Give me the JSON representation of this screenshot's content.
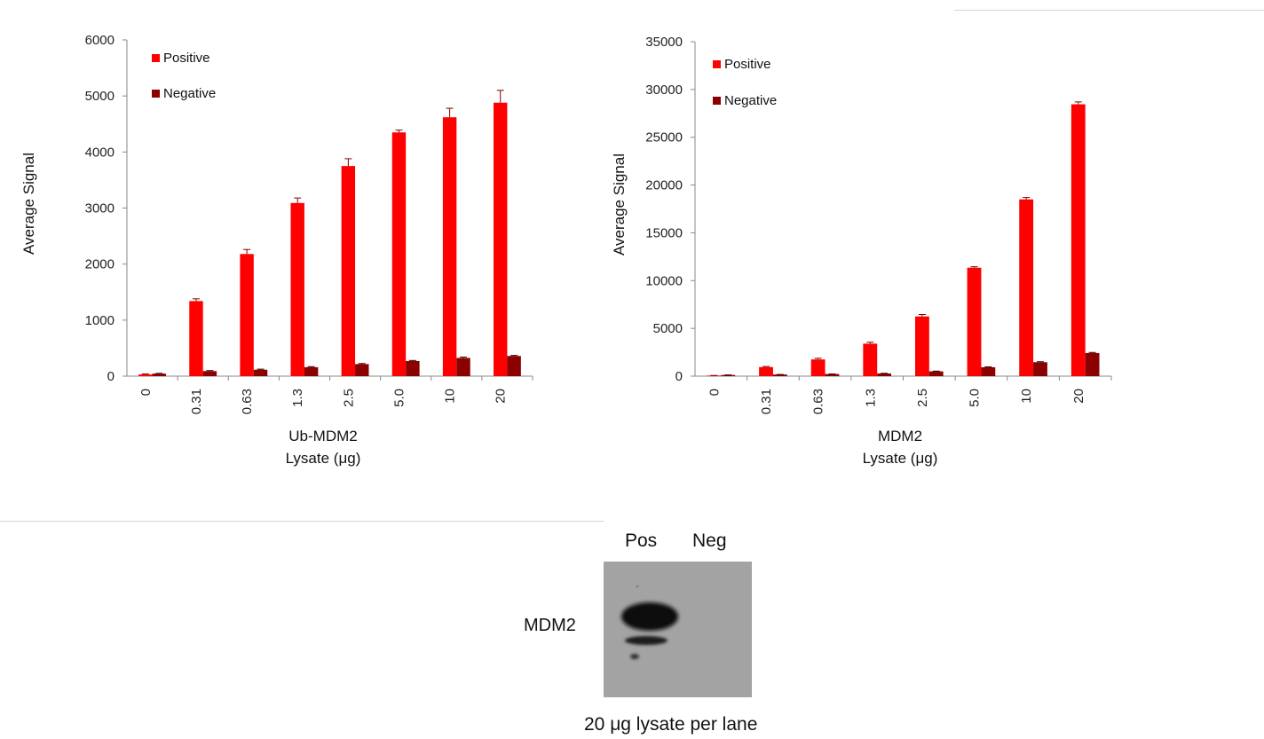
{
  "chart_data": [
    {
      "type": "bar",
      "categories": [
        "0",
        "0.31",
        "0.63",
        "1.3",
        "2.5",
        "5.0",
        "10",
        "20"
      ],
      "series": [
        {
          "name": "Positive",
          "color": "#ff0000",
          "values": [
            30,
            1340,
            2180,
            3090,
            3750,
            4350,
            4620,
            4880
          ],
          "errors": [
            10,
            40,
            80,
            90,
            130,
            40,
            160,
            220
          ]
        },
        {
          "name": "Negative",
          "color": "#8b0000",
          "values": [
            45,
            90,
            115,
            160,
            215,
            270,
            325,
            360
          ],
          "errors": [
            5,
            10,
            10,
            10,
            10,
            10,
            15,
            10
          ]
        }
      ],
      "ylabel": "Average Signal",
      "xlabel_lines": [
        "Ub-MDM2",
        "Lysate (μg)"
      ],
      "ylim": [
        0,
        6000
      ],
      "yticks": [
        0,
        1000,
        2000,
        3000,
        4000,
        5000,
        6000
      ],
      "grid": false,
      "legend_position": "top-left"
    },
    {
      "type": "bar",
      "categories": [
        "0",
        "0.31",
        "0.63",
        "1.3",
        "2.5",
        "5.0",
        "10",
        "20"
      ],
      "series": [
        {
          "name": "Positive",
          "color": "#ff0000",
          "values": [
            60,
            950,
            1750,
            3400,
            6250,
            11350,
            18500,
            28450
          ],
          "errors": [
            10,
            60,
            120,
            150,
            200,
            100,
            200,
            250
          ]
        },
        {
          "name": "Negative",
          "color": "#8b0000",
          "values": [
            120,
            170,
            220,
            280,
            500,
            930,
            1460,
            2420
          ],
          "errors": [
            10,
            10,
            10,
            20,
            30,
            40,
            50,
            60
          ]
        }
      ],
      "ylabel": "Average Signal",
      "xlabel_lines": [
        "MDM2",
        "Lysate (μg)"
      ],
      "ylim": [
        0,
        35000
      ],
      "yticks": [
        0,
        5000,
        10000,
        15000,
        20000,
        25000,
        30000,
        35000
      ],
      "grid": false,
      "legend_position": "top-left"
    }
  ],
  "blot": {
    "lane_labels": [
      "Pos",
      "Neg"
    ],
    "band_label": "MDM2",
    "caption": "20 μg lysate per lane"
  }
}
